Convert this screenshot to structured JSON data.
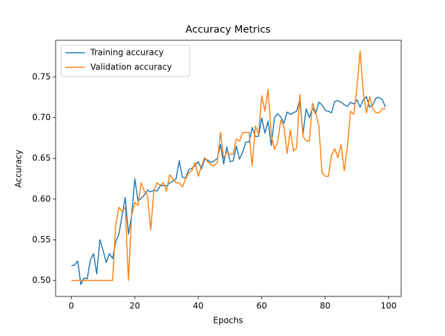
{
  "chart_data": {
    "type": "line",
    "title": "Accuracy Metrics",
    "x_label": "Epochs",
    "y_label": "Accuracy",
    "x": [
      0,
      1,
      2,
      3,
      4,
      5,
      6,
      7,
      8,
      9,
      10,
      11,
      12,
      13,
      14,
      15,
      16,
      17,
      18,
      19,
      20,
      21,
      22,
      23,
      24,
      25,
      26,
      27,
      28,
      29,
      30,
      31,
      32,
      33,
      34,
      35,
      36,
      37,
      38,
      39,
      40,
      41,
      42,
      43,
      44,
      45,
      46,
      47,
      48,
      49,
      50,
      51,
      52,
      53,
      54,
      55,
      56,
      57,
      58,
      59,
      60,
      61,
      62,
      63,
      64,
      65,
      66,
      67,
      68,
      69,
      70,
      71,
      72,
      73,
      74,
      75,
      76,
      77,
      78,
      79,
      80,
      81,
      82,
      83,
      84,
      85,
      86,
      87,
      88,
      89,
      90,
      91,
      92,
      93,
      94,
      95,
      96,
      97,
      98,
      99
    ],
    "series": [
      {
        "name": "Training accuracy",
        "color": "#1f77b4",
        "values": [
          0.518,
          0.519,
          0.524,
          0.495,
          0.503,
          0.502,
          0.525,
          0.533,
          0.508,
          0.55,
          0.537,
          0.522,
          0.533,
          0.527,
          0.548,
          0.557,
          0.58,
          0.602,
          0.557,
          0.58,
          0.625,
          0.598,
          0.601,
          0.605,
          0.611,
          0.609,
          0.611,
          0.61,
          0.616,
          0.617,
          0.616,
          0.62,
          0.622,
          0.625,
          0.647,
          0.627,
          0.626,
          0.636,
          0.638,
          0.641,
          0.646,
          0.637,
          0.649,
          0.648,
          0.645,
          0.647,
          0.65,
          0.667,
          0.643,
          0.664,
          0.646,
          0.647,
          0.665,
          0.649,
          0.658,
          0.67,
          0.67,
          0.688,
          0.677,
          0.677,
          0.7,
          0.681,
          0.696,
          0.666,
          0.7,
          0.705,
          0.701,
          0.693,
          0.707,
          0.704,
          0.706,
          0.708,
          0.722,
          0.68,
          0.711,
          0.7,
          0.712,
          0.705,
          0.719,
          0.716,
          0.709,
          0.708,
          0.706,
          0.72,
          0.721,
          0.719,
          0.716,
          0.714,
          0.719,
          0.717,
          0.722,
          0.713,
          0.722,
          0.726,
          0.713,
          0.716,
          0.724,
          0.725,
          0.722,
          0.713
        ]
      },
      {
        "name": "Validation accuracy",
        "color": "#ff7f0e",
        "values": [
          0.5,
          0.5,
          0.5,
          0.5,
          0.5,
          0.5,
          0.5,
          0.5,
          0.5,
          0.5,
          0.5,
          0.5,
          0.5,
          0.5,
          0.568,
          0.59,
          0.585,
          0.59,
          0.5,
          0.58,
          0.596,
          0.592,
          0.62,
          0.61,
          0.605,
          0.562,
          0.61,
          0.62,
          0.617,
          0.62,
          0.61,
          0.63,
          0.625,
          0.62,
          0.62,
          0.615,
          0.625,
          0.632,
          0.635,
          0.645,
          0.628,
          0.64,
          0.651,
          0.646,
          0.642,
          0.641,
          0.645,
          0.682,
          0.65,
          0.658,
          0.655,
          0.655,
          0.674,
          0.671,
          0.682,
          0.682,
          0.682,
          0.641,
          0.69,
          0.68,
          0.727,
          0.708,
          0.735,
          0.679,
          0.661,
          0.67,
          0.697,
          0.689,
          0.656,
          0.685,
          0.659,
          0.663,
          0.729,
          0.677,
          0.672,
          0.671,
          0.718,
          0.706,
          0.69,
          0.633,
          0.628,
          0.628,
          0.654,
          0.662,
          0.651,
          0.667,
          0.635,
          0.664,
          0.708,
          0.704,
          0.737,
          0.782,
          0.731,
          0.706,
          0.726,
          0.711,
          0.706,
          0.706,
          0.711,
          0.711
        ]
      }
    ],
    "xlim": [
      -4.95,
      103.95
    ],
    "ylim": [
      0.4804,
      0.7952
    ],
    "xticks": [
      0,
      20,
      40,
      60,
      80,
      100
    ],
    "yticks": [
      {
        "value": 0.5,
        "label": "0.50"
      },
      0.55,
      {
        "value": 0.6,
        "label": "0.60"
      },
      0.65,
      {
        "value": 0.7,
        "label": "0.70"
      },
      0.75
    ],
    "legend": "upper left"
  }
}
